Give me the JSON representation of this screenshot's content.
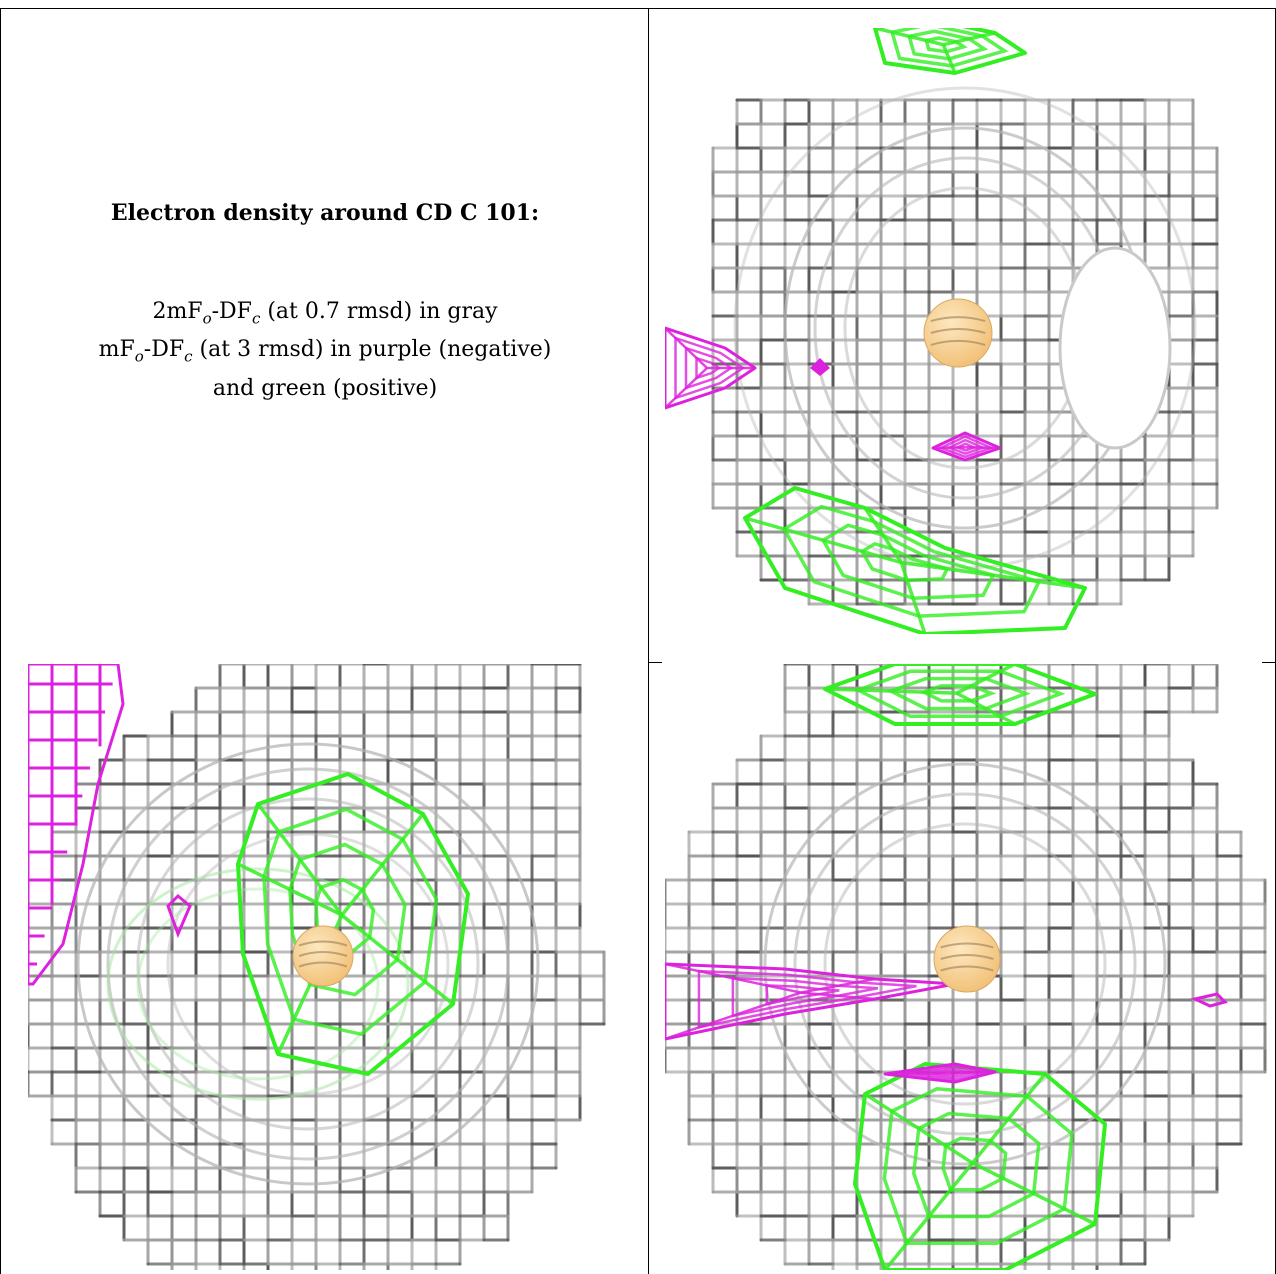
{
  "caption": {
    "title": "Electron density around CD C 101:",
    "line1_prefix": "2mF",
    "line1_sub_o": "o",
    "line1_mid": "-DF",
    "line1_sub_c": "c",
    "line1_suffix": " (at 0.7 rmsd) in gray",
    "line2_prefix": "mF",
    "line2_sub_o": "o",
    "line2_mid": "-DF",
    "line2_sub_c": "c",
    "line2_suffix": " (at 3 rmsd) in purple (negative)",
    "line3": "and green (positive)"
  },
  "colors": {
    "gray_mesh": "#9a9a9a",
    "dark_mesh": "#555555",
    "green_mesh": "#33ee22",
    "purple_mesh": "#dd22dd",
    "atom": "#f2c27a"
  },
  "panels": [
    {
      "name": "view-1",
      "atom_label": "CD C 101"
    },
    {
      "name": "view-2",
      "atom_label": "CD C 101"
    },
    {
      "name": "view-3",
      "atom_label": "CD C 101"
    }
  ]
}
